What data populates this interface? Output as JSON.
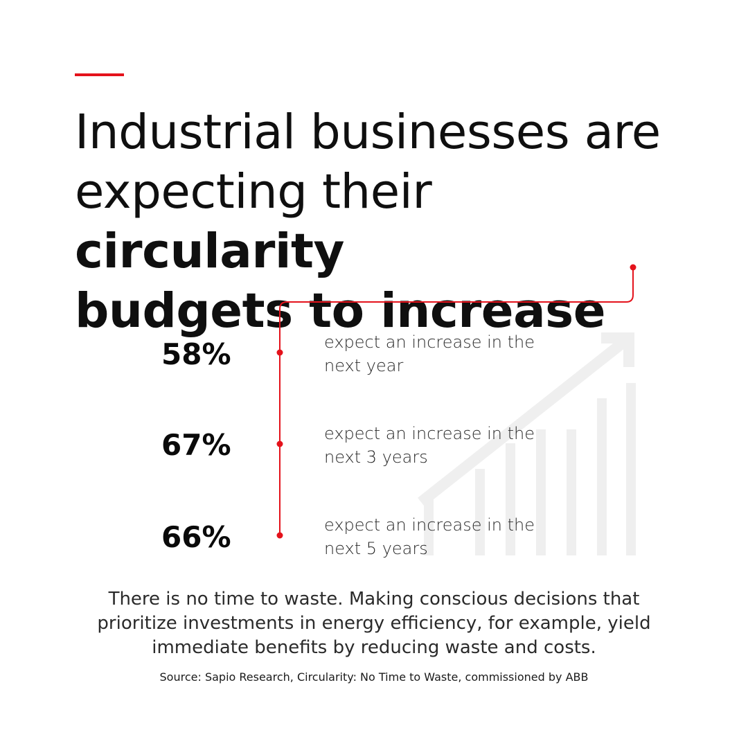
{
  "accent_color": "#e4121b",
  "headline": {
    "line1": "Industrial businesses are",
    "line2_regular": "expecting their ",
    "line2_bold": "circularity",
    "line3_bold": "budgets to increase"
  },
  "stats": [
    {
      "value": "58%",
      "desc_line1": "expect an increase in the",
      "desc_line2": "next year"
    },
    {
      "value": "67%",
      "desc_line1": "expect an increase in the",
      "desc_line2": "next 3 years"
    },
    {
      "value": "66%",
      "desc_line1": "expect an increase in the",
      "desc_line2": "next 5 years"
    }
  ],
  "body": {
    "line1": "There is no time to waste. Making conscious decisions that",
    "line2": "prioritize investments in energy efficiency, for example, yield",
    "line3": "immediate benefits by reducing waste and costs."
  },
  "source": "Source: Sapio Research, Circularity: No Time to Waste, commissioned by ABB",
  "icons": [
    "growth-chart-icon"
  ]
}
